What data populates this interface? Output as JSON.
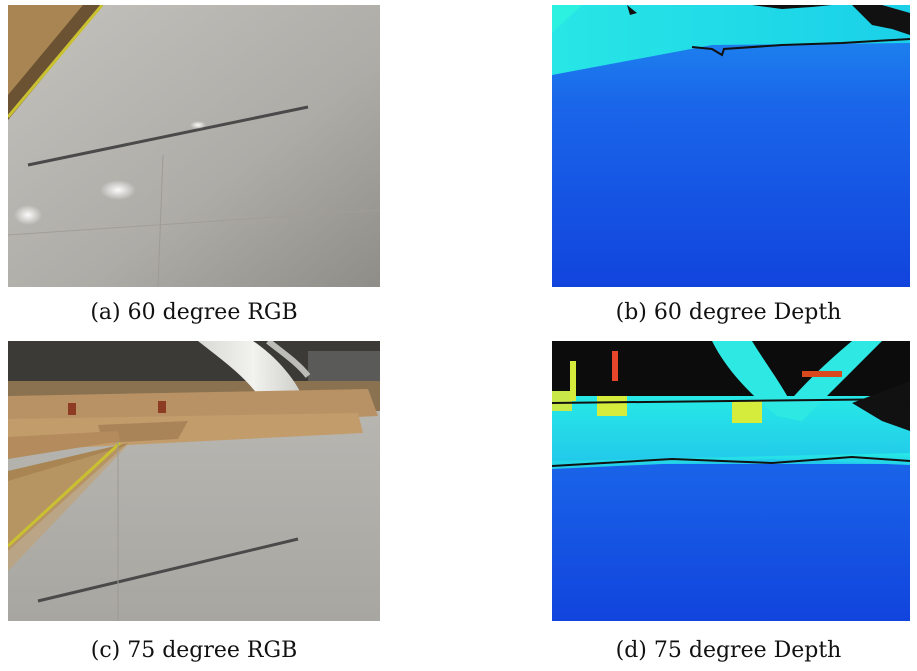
{
  "figure": {
    "panels": [
      {
        "id": "a",
        "caption": "(a) 60 degree RGB",
        "kind": "rgb"
      },
      {
        "id": "b",
        "caption": "(b) 60 degree Depth",
        "kind": "depth"
      },
      {
        "id": "c",
        "caption": "(c) 75 degree RGB",
        "kind": "rgb"
      },
      {
        "id": "d",
        "caption": "(d) 75 degree Depth",
        "kind": "depth"
      }
    ]
  },
  "colors": {
    "floor": "#b3b0aa",
    "wood": "#b08a5c",
    "depth_near": "#1344e0",
    "depth_far": "#22e8e8",
    "depth_far_high": "#d8f040"
  }
}
